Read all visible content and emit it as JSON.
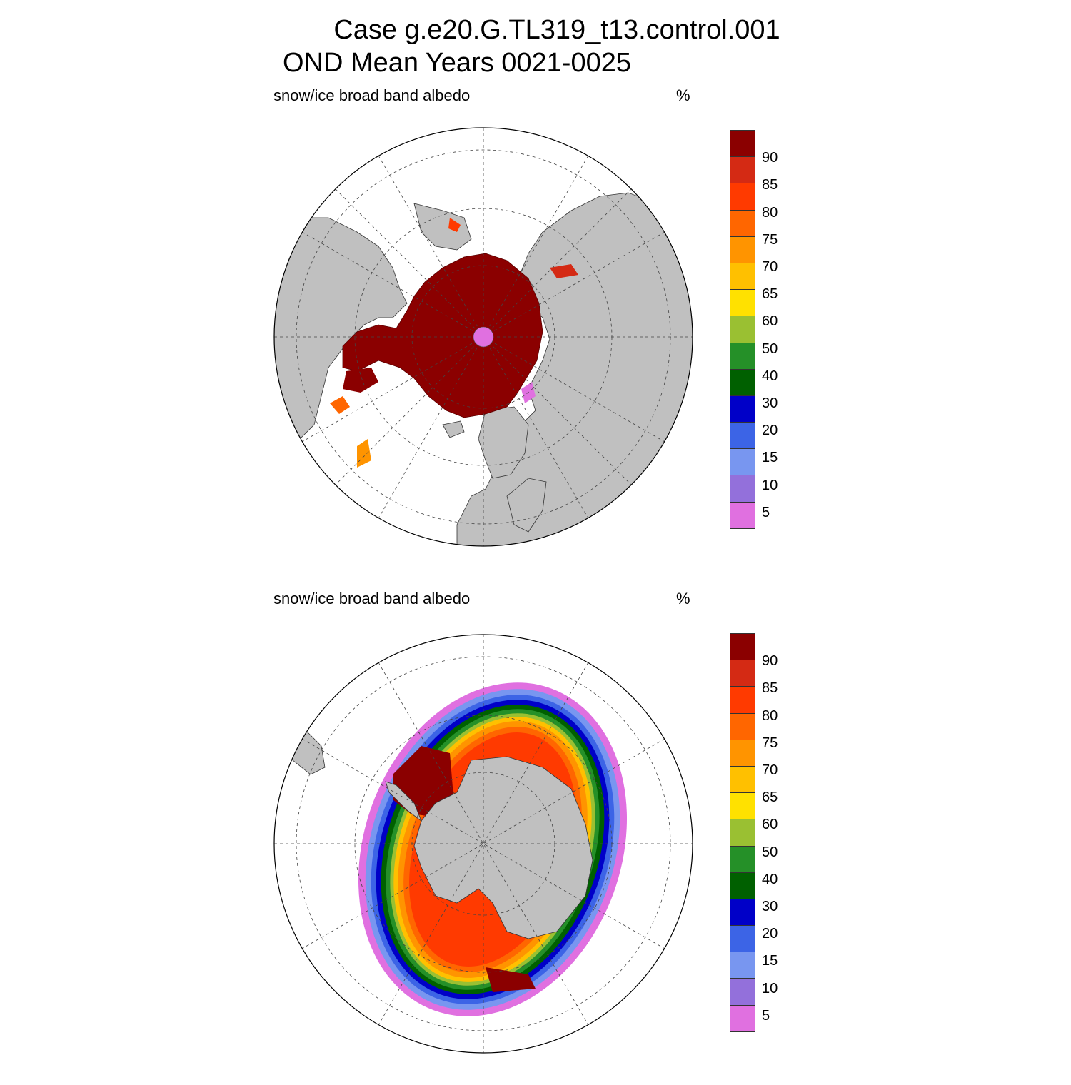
{
  "header": {
    "title_line1": "Case g.e20.G.TL319_t13.control.001",
    "title_line2": "OND Mean   Years 0021-0025"
  },
  "panels": [
    {
      "hemisphere": "north",
      "variable_label": "snow/ice broad band albedo",
      "units_label": "%"
    },
    {
      "hemisphere": "south",
      "variable_label": "snow/ice broad band albedo",
      "units_label": "%"
    }
  ],
  "colorbar": {
    "labels": [
      "90",
      "85",
      "80",
      "75",
      "70",
      "65",
      "60",
      "50",
      "40",
      "30",
      "20",
      "15",
      "10",
      "5"
    ],
    "colors": [
      "#8b0000",
      "#d42a14",
      "#ff3a00",
      "#ff6600",
      "#ff9400",
      "#ffc000",
      "#ffe100",
      "#9ac032",
      "#259028",
      "#006000",
      "#0000c8",
      "#3c64e6",
      "#7896f0",
      "#9370db",
      "#e070e0"
    ]
  },
  "map_colors": {
    "land": "#c0c0c0",
    "ocean": "#ffffff",
    "pole_hole": "#e070e0"
  }
}
